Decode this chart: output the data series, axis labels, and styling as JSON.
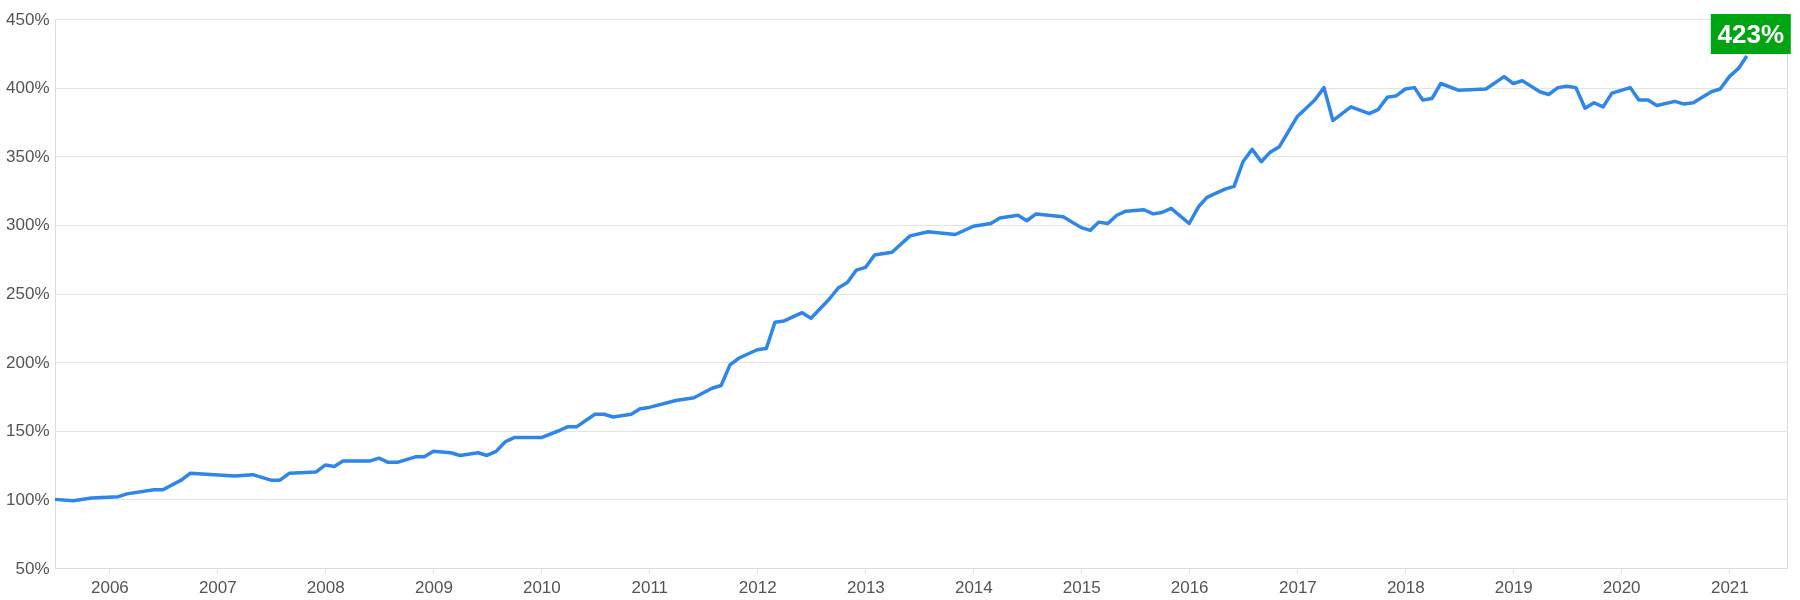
{
  "chart_data": {
    "type": "line",
    "x": [
      "2005-07",
      "2005-09",
      "2005-11",
      "2006-02",
      "2006-03",
      "2006-06",
      "2006-07",
      "2006-09",
      "2006-10",
      "2007-03",
      "2007-05",
      "2007-07",
      "2007-08",
      "2007-09",
      "2007-12",
      "2008-01",
      "2008-02",
      "2008-03",
      "2008-06",
      "2008-07",
      "2008-08",
      "2008-09",
      "2008-11",
      "2008-12",
      "2009-01",
      "2009-03",
      "2009-04",
      "2009-06",
      "2009-07",
      "2009-08",
      "2009-09",
      "2009-10",
      "2010-01",
      "2010-03",
      "2010-04",
      "2010-05",
      "2010-07",
      "2010-08",
      "2010-09",
      "2010-11",
      "2010-12",
      "2011-01",
      "2011-04",
      "2011-06",
      "2011-08",
      "2011-09",
      "2011-10",
      "2011-11",
      "2012-01",
      "2012-02",
      "2012-03",
      "2012-04",
      "2012-06",
      "2012-07",
      "2012-09",
      "2012-10",
      "2012-11",
      "2012-12",
      "2013-01",
      "2013-02",
      "2013-04",
      "2013-06",
      "2013-08",
      "2013-11",
      "2014-01",
      "2014-03",
      "2014-04",
      "2014-06",
      "2014-07",
      "2014-08",
      "2014-11",
      "2015-01",
      "2015-02",
      "2015-03",
      "2015-04",
      "2015-05",
      "2015-06",
      "2015-08",
      "2015-09",
      "2015-10",
      "2015-11",
      "2016-01",
      "2016-02",
      "2016-03",
      "2016-05",
      "2016-06",
      "2016-07",
      "2016-08",
      "2016-09",
      "2016-10",
      "2016-11",
      "2017-01",
      "2017-03",
      "2017-04",
      "2017-05",
      "2017-07",
      "2017-09",
      "2017-10",
      "2017-11",
      "2017-12",
      "2018-01",
      "2018-02",
      "2018-03",
      "2018-04",
      "2018-05",
      "2018-07",
      "2018-10",
      "2018-12",
      "2019-01",
      "2019-02",
      "2019-04",
      "2019-05",
      "2019-06",
      "2019-07",
      "2019-08",
      "2019-09",
      "2019-10",
      "2019-11",
      "2019-12",
      "2020-02",
      "2020-03",
      "2020-04",
      "2020-05",
      "2020-07",
      "2020-08",
      "2020-09",
      "2020-11",
      "2020-12",
      "2021-01",
      "2021-02",
      "2021-03"
    ],
    "series": [
      {
        "color": "#2e86e8",
        "values": [
          100,
          99,
          101,
          102,
          104,
          107,
          107,
          114,
          119,
          117,
          118,
          114,
          114,
          119,
          120,
          125,
          124,
          128,
          128,
          130,
          127,
          127,
          131,
          131,
          135,
          134,
          132,
          134,
          132,
          135,
          142,
          145,
          145,
          150,
          153,
          153,
          162,
          162,
          160,
          162,
          166,
          167,
          172,
          174,
          181,
          183,
          198,
          203,
          209,
          210,
          229,
          230,
          236,
          232,
          246,
          254,
          258,
          267,
          269,
          278,
          280,
          292,
          295,
          293,
          299,
          301,
          305,
          307,
          303,
          308,
          306,
          298,
          296,
          302,
          301,
          307,
          310,
          311,
          308,
          309,
          312,
          301,
          313,
          320,
          326,
          328,
          346,
          355,
          346,
          353,
          357,
          379,
          391,
          400,
          376,
          386,
          381,
          384,
          393,
          394,
          399,
          400,
          391,
          392,
          403,
          398,
          399,
          408,
          403,
          405,
          397,
          395,
          400,
          401,
          400,
          385,
          389,
          386,
          396,
          400,
          391,
          391,
          387,
          390,
          388,
          389,
          397,
          399,
          408,
          414,
          423
        ]
      }
    ],
    "xlim": [
      "2005-07",
      "2021-07-15"
    ],
    "xticks": [
      "2006",
      "2007",
      "2008",
      "2009",
      "2010",
      "2011",
      "2012",
      "2013",
      "2014",
      "2015",
      "2016",
      "2017",
      "2018",
      "2019",
      "2020",
      "2021"
    ],
    "ylim": [
      50,
      450
    ],
    "yticks": [
      {
        "value": 50,
        "label": "50%"
      },
      {
        "value": 100,
        "label": "100%"
      },
      {
        "value": 150,
        "label": "150%"
      },
      {
        "value": 200,
        "label": "200%"
      },
      {
        "value": 250,
        "label": "250%"
      },
      {
        "value": 300,
        "label": "300%"
      },
      {
        "value": 350,
        "label": "350%"
      },
      {
        "value": 400,
        "label": "400%"
      },
      {
        "value": 450,
        "label": "450%"
      }
    ],
    "grid": "y",
    "marker": "none",
    "line_style": "solid",
    "annotations": [
      {
        "text": "423%",
        "x": "2021-03",
        "y": 423
      }
    ]
  }
}
